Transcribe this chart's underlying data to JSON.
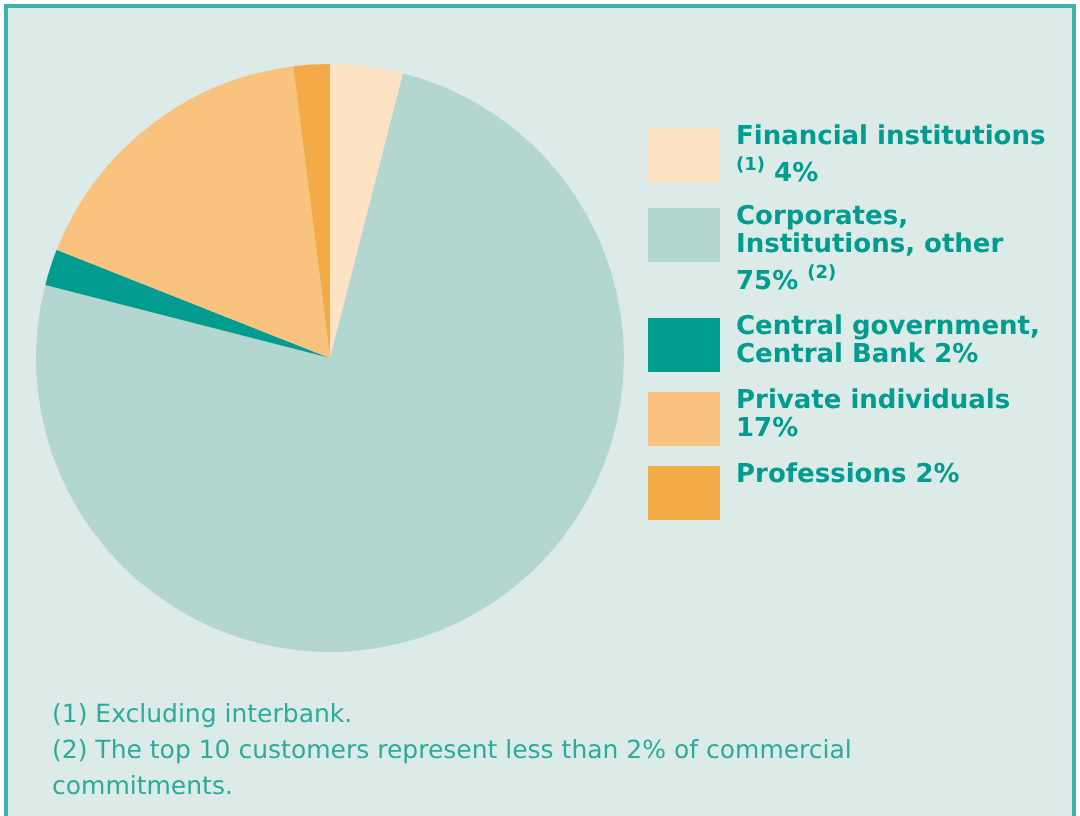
{
  "chart_data": {
    "type": "pie",
    "categories": [
      "Financial institutions $^{(1)}$ 4%",
      "Corporates, Institutions, other 75% $^{(2)}$",
      "Central government, Central Bank 2%",
      "Private individuals 17%",
      "Professions 2%"
    ],
    "values": [
      4,
      75,
      2,
      17,
      2
    ],
    "colors": [
      "#fde2c4",
      "#b3d6d1",
      "#009c8f",
      "#f9c37f",
      "#f2ab46"
    ],
    "legend": "right",
    "annotations": [
      "(1) Excluding interbank.",
      "(2) The top 10 customers represent less than 2% of commercial commitments."
    ]
  }
}
